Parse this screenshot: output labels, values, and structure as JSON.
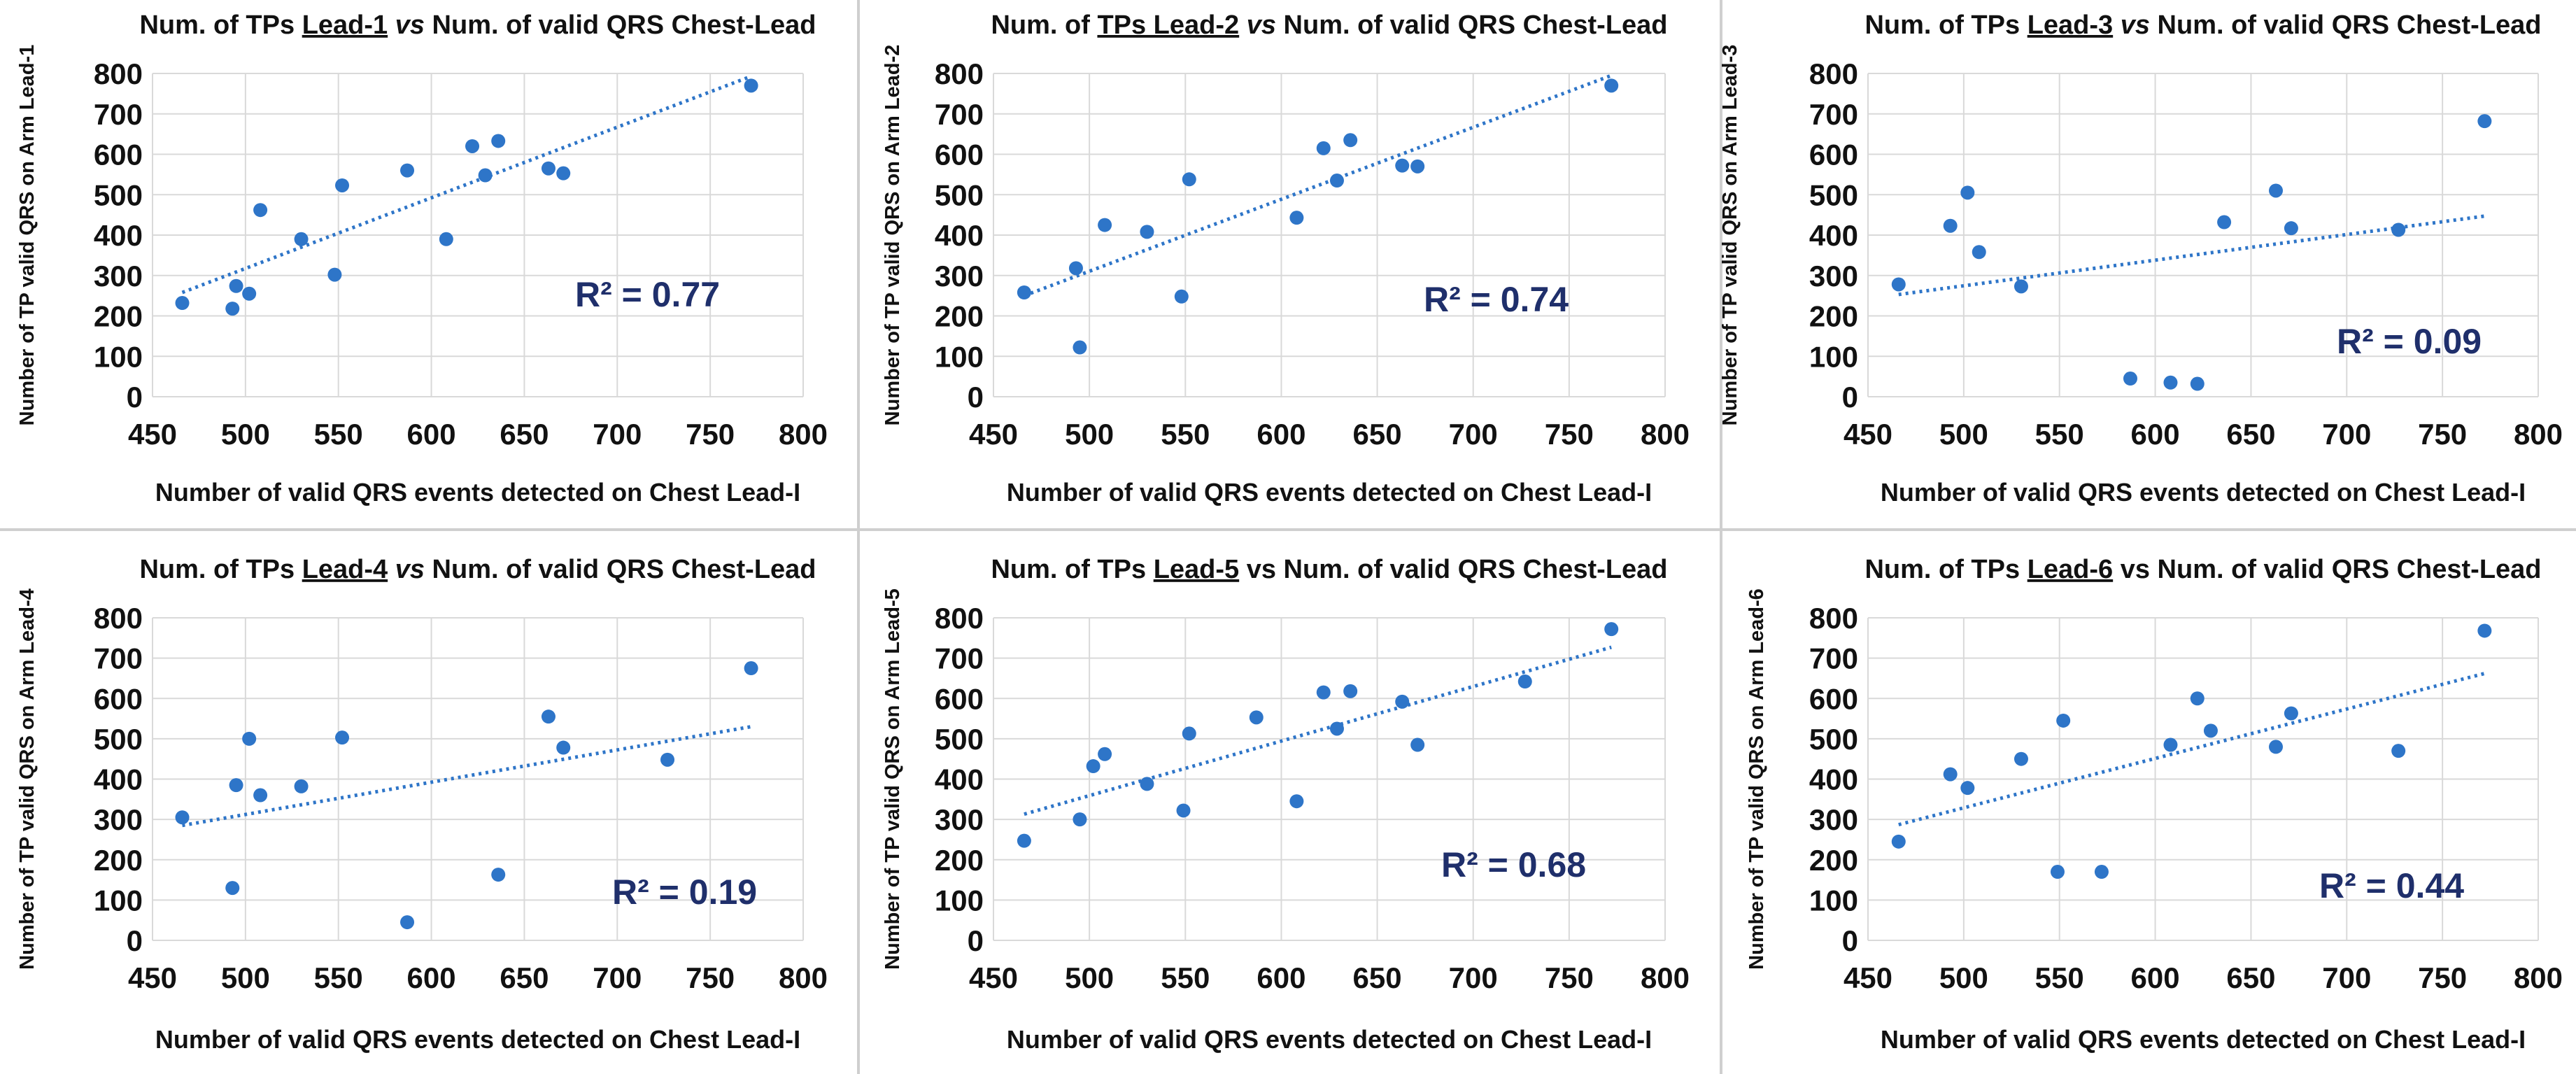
{
  "colors": {
    "point": "#2e75c8",
    "trendline": "#2e75c8",
    "r2_text": "#1f2f6b",
    "grid": "#d9d9d9"
  },
  "chart_data": [
    {
      "type": "scatter",
      "title": {
        "prefix": "Num. of TPs ",
        "lead": "Lead-1",
        "sep": " vs",
        "suffix": " Num. of valid QRS Chest-Lead",
        "sep_italic": true
      },
      "xlabel": "Number of valid QRS events detected on Chest Lead-I",
      "ylabel": "Number of TP valid QRS on Arm Lead-1",
      "xlim": [
        450,
        800
      ],
      "ylim": [
        0,
        800
      ],
      "xticks": [
        450,
        500,
        550,
        600,
        650,
        700,
        750,
        800
      ],
      "yticks": [
        0,
        100,
        200,
        300,
        400,
        500,
        600,
        700,
        800
      ],
      "x": [
        466,
        493,
        495,
        502,
        508,
        530,
        548,
        552,
        587,
        608,
        622,
        629,
        636,
        663,
        671,
        772
      ],
      "y": [
        232,
        218,
        274,
        255,
        462,
        390,
        302,
        523,
        560,
        390,
        620,
        548,
        633,
        565,
        553,
        770
      ],
      "trendline": {
        "x": [
          466,
          772
        ],
        "y": [
          258,
          793
        ]
      },
      "r2": "R² = 0.77"
    },
    {
      "type": "scatter",
      "title": {
        "prefix": "Num. of ",
        "lead": "TPs Lead-2",
        "sep": " vs",
        "suffix": " Num. of valid QRS Chest-Lead",
        "sep_italic": true
      },
      "xlabel": "Number of valid QRS events detected on Chest Lead-I",
      "ylabel": "Number of TP valid QRS on Arm Lead-2",
      "xlim": [
        450,
        800
      ],
      "ylim": [
        0,
        800
      ],
      "xticks": [
        450,
        500,
        550,
        600,
        650,
        700,
        750,
        800
      ],
      "yticks": [
        0,
        100,
        200,
        300,
        400,
        500,
        600,
        700,
        800
      ],
      "x": [
        466,
        493,
        495,
        508,
        530,
        548,
        552,
        608,
        622,
        629,
        636,
        663,
        671,
        772
      ],
      "y": [
        258,
        318,
        122,
        425,
        408,
        248,
        538,
        443,
        615,
        535,
        635,
        572,
        570,
        770
      ],
      "trendline": {
        "x": [
          466,
          772
        ],
        "y": [
          250,
          795
        ]
      },
      "r2": "R² = 0.74"
    },
    {
      "type": "scatter",
      "title": {
        "prefix": "Num. of TPs ",
        "lead": "Lead-3",
        "sep": " vs",
        "suffix": " Num. of valid QRS Chest-Lead",
        "sep_italic": true
      },
      "xlabel": "Number of valid QRS events detected on Chest Lead-I",
      "ylabel": "Number of TP valid QRS on Arm Lead-3",
      "xlim": [
        450,
        800
      ],
      "ylim": [
        0,
        800
      ],
      "xticks": [
        450,
        500,
        550,
        600,
        650,
        700,
        750,
        800
      ],
      "yticks": [
        0,
        100,
        200,
        300,
        400,
        500,
        600,
        700,
        800
      ],
      "x": [
        466,
        493,
        502,
        508,
        530,
        587,
        608,
        622,
        636,
        663,
        671,
        727,
        772
      ],
      "y": [
        278,
        423,
        505,
        358,
        273,
        45,
        35,
        32,
        432,
        510,
        417,
        413,
        682
      ],
      "trendline": {
        "x": [
          466,
          772
        ],
        "y": [
          253,
          447
        ]
      },
      "r2": "R² = 0.09"
    },
    {
      "type": "scatter",
      "title": {
        "prefix": "Num. of TPs ",
        "lead": "Lead-4",
        "sep": " vs",
        "suffix": " Num. of valid QRS Chest-Lead",
        "sep_italic": true
      },
      "xlabel": "Number of valid QRS events detected on Chest Lead-I",
      "ylabel": "Number of TP valid QRS on Arm Lead-4",
      "xlim": [
        450,
        800
      ],
      "ylim": [
        0,
        800
      ],
      "xticks": [
        450,
        500,
        550,
        600,
        650,
        700,
        750,
        800
      ],
      "yticks": [
        0,
        100,
        200,
        300,
        400,
        500,
        600,
        700,
        800
      ],
      "x": [
        466,
        493,
        495,
        502,
        508,
        530,
        552,
        587,
        636,
        663,
        671,
        727,
        772
      ],
      "y": [
        305,
        130,
        385,
        500,
        360,
        382,
        503,
        45,
        163,
        555,
        478,
        448,
        675
      ],
      "trendline": {
        "x": [
          466,
          772
        ],
        "y": [
          285,
          530
        ]
      },
      "r2": "R² = 0.19"
    },
    {
      "type": "scatter",
      "title": {
        "prefix": "Num. of TPs ",
        "lead": "Lead-5",
        "sep": " vs",
        "suffix": " Num. of valid QRS Chest-Lead",
        "sep_italic": false
      },
      "xlabel": "Number of valid QRS events detected on Chest Lead-I",
      "ylabel": "Number of TP valid QRS on Arm Lead-5",
      "xlim": [
        450,
        800
      ],
      "ylim": [
        0,
        800
      ],
      "xticks": [
        450,
        500,
        550,
        600,
        650,
        700,
        750,
        800
      ],
      "yticks": [
        0,
        100,
        200,
        300,
        400,
        500,
        600,
        700,
        800
      ],
      "x": [
        466,
        495,
        502,
        508,
        530,
        549,
        552,
        587,
        608,
        622,
        629,
        636,
        663,
        671,
        727,
        772
      ],
      "y": [
        247,
        300,
        432,
        462,
        388,
        322,
        513,
        553,
        345,
        615,
        525,
        618,
        592,
        485,
        642,
        772
      ],
      "trendline": {
        "x": [
          466,
          772
        ],
        "y": [
          313,
          727
        ]
      },
      "r2": "R² = 0.68"
    },
    {
      "type": "scatter",
      "title": {
        "prefix": "Num. of TPs ",
        "lead": "Lead-6",
        "sep": " vs",
        "suffix": " Num. of valid QRS Chest-Lead",
        "sep_italic": false
      },
      "xlabel": "Number of valid QRS events detected on Chest Lead-I",
      "ylabel": "Number of TP valid QRS on Arm Lead-6",
      "xlim": [
        450,
        800
      ],
      "ylim": [
        0,
        800
      ],
      "xticks": [
        450,
        500,
        550,
        600,
        650,
        700,
        750,
        800
      ],
      "yticks": [
        0,
        100,
        200,
        300,
        400,
        500,
        600,
        700,
        800
      ],
      "x": [
        466,
        493,
        502,
        530,
        549,
        552,
        572,
        608,
        622,
        629,
        663,
        671,
        727,
        772
      ],
      "y": [
        245,
        412,
        378,
        450,
        170,
        545,
        170,
        485,
        600,
        520,
        480,
        563,
        470,
        768
      ],
      "trendline": {
        "x": [
          466,
          772
        ],
        "y": [
          287,
          662
        ]
      },
      "r2": "R² = 0.44"
    }
  ]
}
